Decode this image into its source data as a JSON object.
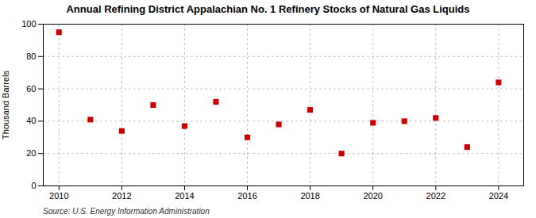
{
  "chart_data": {
    "type": "scatter",
    "title": "Annual Refining District Appalachian No. 1 Refinery Stocks of Natural Gas Liquids",
    "ylabel": "Thousand Barrels",
    "source": "Source: U.S. Energy Information Administration",
    "x": [
      2010,
      2011,
      2012,
      2013,
      2014,
      2015,
      2016,
      2017,
      2018,
      2019,
      2020,
      2021,
      2022,
      2023,
      2024
    ],
    "values": [
      95,
      41,
      34,
      50,
      37,
      52,
      30,
      38,
      47,
      20,
      39,
      40,
      42,
      24,
      64
    ],
    "color": "#cc0000",
    "marker": "square",
    "xlim": [
      2009.5,
      2024.8
    ],
    "xticks": [
      2010,
      2012,
      2014,
      2016,
      2018,
      2020,
      2022,
      2024
    ],
    "ylim": [
      0,
      100
    ],
    "yticks": [
      0,
      20,
      40,
      60,
      80,
      100
    ],
    "grid": true
  }
}
